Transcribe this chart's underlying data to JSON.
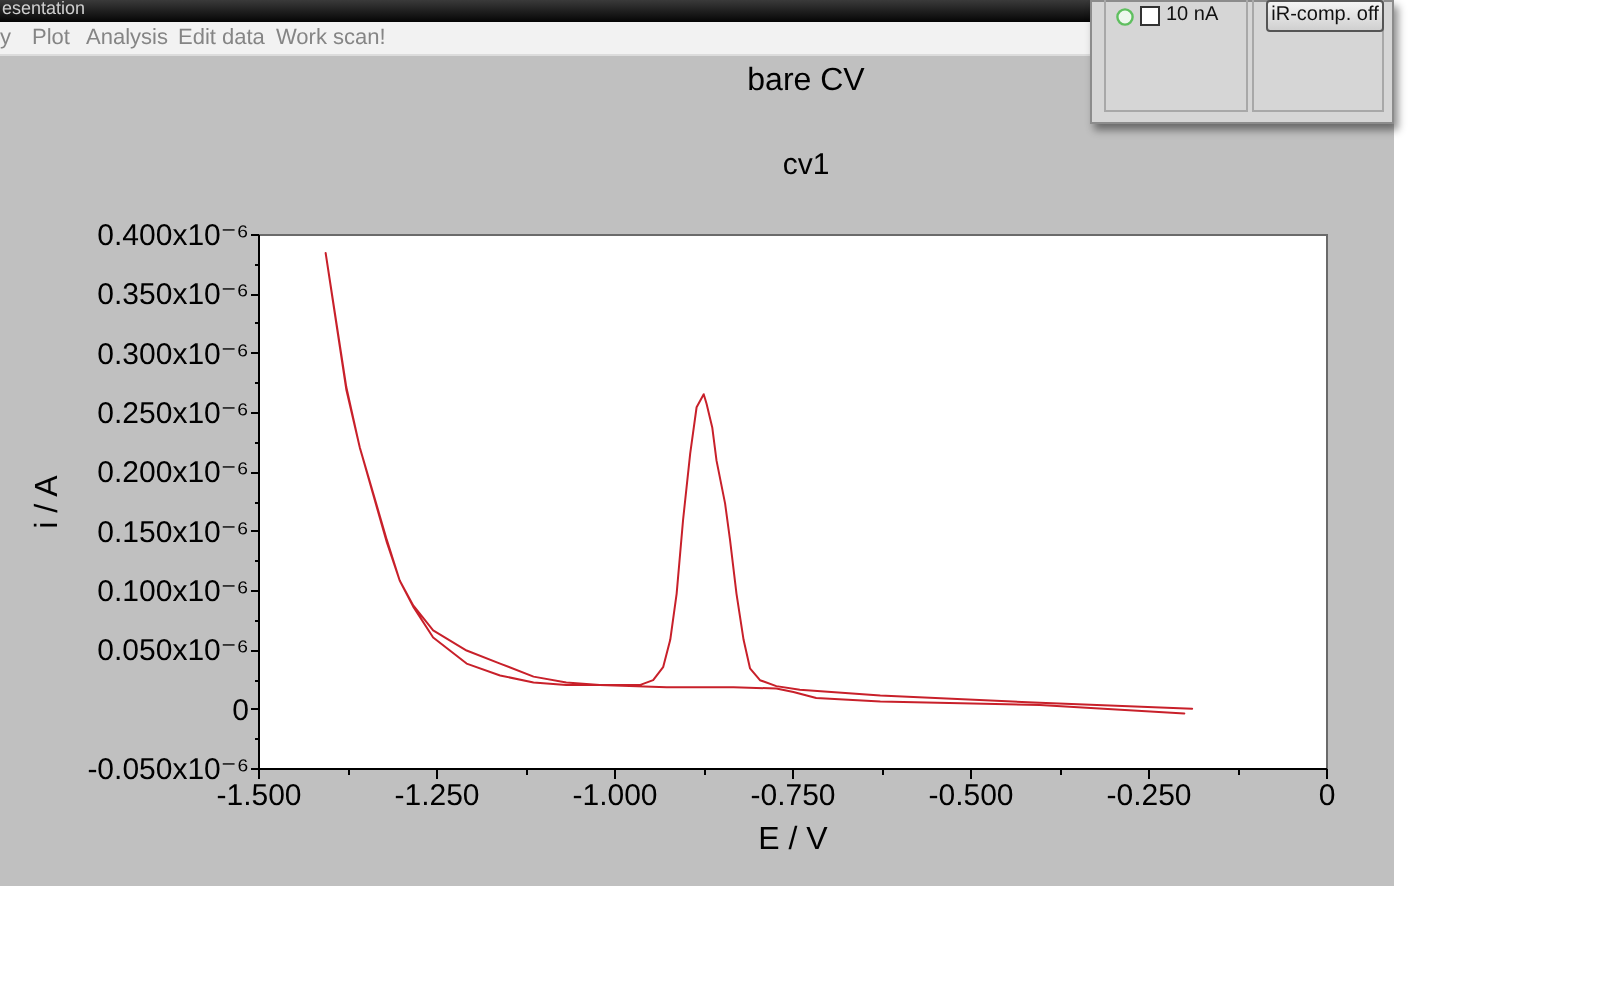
{
  "chart_data": {
    "type": "line",
    "title": "bare CV",
    "subtitle": "cv1",
    "xlabel": "E / V",
    "ylabel": "i / A",
    "color": "#c8202a",
    "x": [
      -0.199,
      -0.402,
      -0.626,
      -0.716,
      -0.748,
      -0.772,
      -0.832,
      -0.926,
      -1.02,
      -1.067,
      -1.113,
      -1.16,
      -1.207,
      -1.254,
      -1.282,
      -1.301,
      -1.319,
      -1.338,
      -1.357,
      -1.376,
      -1.405,
      -1.376,
      -1.357,
      -1.338,
      -1.319,
      -1.301,
      -1.282,
      -1.254,
      -1.207,
      -1.16,
      -1.113,
      -1.067,
      -1.02,
      -0.963,
      -0.945,
      -0.931,
      -0.921,
      -0.912,
      -0.903,
      -0.893,
      -0.884,
      -0.874,
      -0.87,
      -0.862,
      -0.856,
      -0.844,
      -0.837,
      -0.828,
      -0.818,
      -0.809,
      -0.795,
      -0.772,
      -0.739,
      -0.626,
      -0.402,
      -0.188
    ],
    "values": [
      -4e-09,
      3e-09,
      6e-09,
      9e-09,
      1.4e-08,
      1.7e-08,
      1.8e-08,
      1.8e-08,
      2e-08,
      2e-08,
      2.2e-08,
      2.8e-08,
      3.8e-08,
      6e-08,
      8.6e-08,
      1.08e-07,
      1.42e-07,
      1.81e-07,
      2.2e-07,
      2.71e-07,
      3.84e-07,
      2.69e-07,
      2.2e-07,
      1.8e-07,
      1.4e-07,
      1.08e-07,
      8.7e-08,
      6.6e-08,
      4.9e-08,
      3.8e-08,
      2.7e-08,
      2.2e-08,
      2e-08,
      2e-08,
      2.4e-08,
      3.5e-08,
      5.8e-08,
      9.7e-08,
      1.59e-07,
      2.15e-07,
      2.54e-07,
      2.65e-07,
      2.57e-07,
      2.37e-07,
      2.09e-07,
      1.73e-07,
      1.42e-07,
      9.7e-08,
      5.8e-08,
      3.4e-08,
      2.4e-08,
      1.9e-08,
      1.6e-08,
      1.1e-08,
      5e-09,
      0
    ],
    "xlim": [
      -1.5,
      0
    ],
    "xticks": [
      {
        "value": -1.5,
        "label": "-1.500"
      },
      {
        "value": -1.375,
        "label": null
      },
      {
        "value": -1.25,
        "label": "-1.250"
      },
      {
        "value": -1.125,
        "label": null
      },
      {
        "value": -1,
        "label": "-1.000"
      },
      {
        "value": -0.875,
        "label": null
      },
      {
        "value": -0.75,
        "label": "-0.750"
      },
      {
        "value": -0.625,
        "label": null
      },
      {
        "value": -0.5,
        "label": "-0.500"
      },
      {
        "value": -0.375,
        "label": null
      },
      {
        "value": -0.25,
        "label": "-0.250"
      },
      {
        "value": -0.125,
        "label": null
      },
      0
    ],
    "ylim": [
      -5e-08,
      4e-07
    ],
    "yticks": [
      {
        "value": -5e-08,
        "label": "-0.050x10⁻⁶"
      },
      {
        "value": -2.5e-08,
        "label": null
      },
      0,
      {
        "value": 2.5e-08,
        "label": null
      },
      {
        "value": 5e-08,
        "label": "0.050x10⁻⁶"
      },
      {
        "value": 7.5e-08,
        "label": null
      },
      {
        "value": 1e-07,
        "label": "0.100x10⁻⁶"
      },
      {
        "value": 1.25e-07,
        "label": null
      },
      {
        "value": 1.5e-07,
        "label": "0.150x10⁻⁶"
      },
      {
        "value": 1.75e-07,
        "label": null
      },
      {
        "value": 2e-07,
        "label": "0.200x10⁻⁶"
      },
      {
        "value": 2.25e-07,
        "label": null
      },
      {
        "value": 2.5e-07,
        "label": "0.250x10⁻⁶"
      },
      {
        "value": 2.75e-07,
        "label": null
      },
      {
        "value": 3e-07,
        "label": "0.300x10⁻⁶"
      },
      {
        "value": 3.25e-07,
        "label": null
      },
      {
        "value": 3.5e-07,
        "label": "0.350x10⁻⁶"
      },
      {
        "value": 3.75e-07,
        "label": null
      },
      {
        "value": 4e-07,
        "label": "0.400x10⁻⁶"
      }
    ],
    "annotations": [
      "esentation",
      "y",
      "Plot",
      "Analysis",
      "Edit data",
      "Work scan!",
      "10 nA",
      "iR-comp. off"
    ]
  }
}
